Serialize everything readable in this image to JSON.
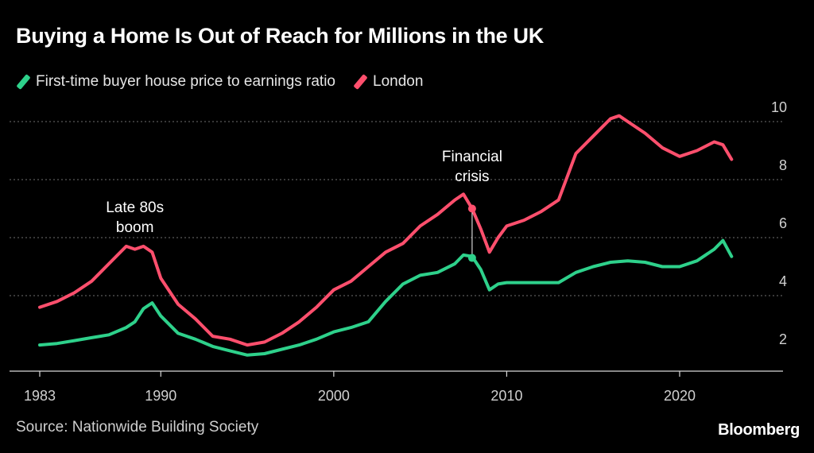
{
  "title": "Buying a Home Is Out of Reach for Millions in the UK",
  "source": "Source: Nationwide Building Society",
  "brand": "Bloomberg",
  "colors": {
    "background": "#000000",
    "green": "#2ed18b",
    "red": "#ff4f6d",
    "grid": "#6f6f6f"
  },
  "chart_data": {
    "type": "line",
    "title": "Buying a Home Is Out of Reach for Millions in the UK",
    "xlabel": "",
    "ylabel": "",
    "xlim": [
      1983,
      2025
    ],
    "ylim": [
      1.6,
      10.3
    ],
    "x_ticks": [
      1983,
      1990,
      2000,
      2010,
      2020
    ],
    "x_tick_labels": [
      "1983",
      "1990",
      "2000",
      "2010",
      "2020"
    ],
    "y_ticks": [
      2,
      4,
      6,
      8,
      10
    ],
    "y_tick_labels": [
      "2",
      "4",
      "6",
      "8",
      "10"
    ],
    "grid": true,
    "legend": "top-left",
    "series": [
      {
        "name": "First-time buyer house price to earnings ratio",
        "color": "#2ed18b",
        "x": [
          1983,
          1984,
          1985,
          1986,
          1987,
          1988,
          1988.5,
          1989,
          1989.5,
          1990,
          1991,
          1992,
          1993,
          1994,
          1995,
          1996,
          1997,
          1998,
          1999,
          2000,
          2001,
          2002,
          2003,
          2004,
          2005,
          2006,
          2007,
          2007.5,
          2008,
          2008.5,
          2009,
          2009.5,
          2010,
          2011,
          2012,
          2013,
          2014,
          2015,
          2016,
          2017,
          2018,
          2019,
          2020,
          2021,
          2022,
          2022.5,
          2023
        ],
        "y": [
          2.3,
          2.35,
          2.45,
          2.55,
          2.65,
          2.9,
          3.1,
          3.55,
          3.75,
          3.3,
          2.7,
          2.5,
          2.25,
          2.1,
          1.95,
          2.0,
          2.15,
          2.3,
          2.5,
          2.75,
          2.9,
          3.1,
          3.8,
          4.4,
          4.7,
          4.8,
          5.1,
          5.4,
          5.35,
          4.9,
          4.2,
          4.4,
          4.45,
          4.45,
          4.45,
          4.45,
          4.8,
          5.0,
          5.15,
          5.2,
          5.15,
          5.0,
          5.0,
          5.2,
          5.6,
          5.9,
          5.35
        ]
      },
      {
        "name": "London",
        "color": "#ff4f6d",
        "x": [
          1983,
          1984,
          1985,
          1986,
          1987,
          1988,
          1988.5,
          1989,
          1989.5,
          1990,
          1991,
          1992,
          1993,
          1994,
          1995,
          1996,
          1997,
          1998,
          1999,
          2000,
          2001,
          2002,
          2003,
          2004,
          2005,
          2006,
          2007,
          2007.5,
          2008,
          2008.5,
          2009,
          2009.5,
          2010,
          2011,
          2012,
          2013,
          2014,
          2015,
          2016,
          2016.5,
          2017,
          2018,
          2019,
          2020,
          2021,
          2022,
          2022.5,
          2023
        ],
        "y": [
          3.6,
          3.8,
          4.1,
          4.5,
          5.1,
          5.7,
          5.6,
          5.7,
          5.5,
          4.6,
          3.7,
          3.2,
          2.6,
          2.5,
          2.3,
          2.4,
          2.7,
          3.1,
          3.6,
          4.2,
          4.5,
          5.0,
          5.5,
          5.8,
          6.4,
          6.8,
          7.3,
          7.5,
          7.0,
          6.3,
          5.5,
          6.0,
          6.4,
          6.6,
          6.9,
          7.3,
          8.9,
          9.5,
          10.1,
          10.2,
          10.0,
          9.6,
          9.1,
          8.8,
          9.0,
          9.3,
          9.2,
          8.7
        ]
      }
    ],
    "annotations": [
      {
        "lines": [
          "Late 80s",
          "boom"
        ],
        "x": 1988.5,
        "y": 5.7
      },
      {
        "lines": [
          "Financial",
          "crisis"
        ],
        "x": 2008,
        "y": 7.0,
        "marker_y": [
          7.0,
          5.3
        ]
      }
    ]
  }
}
